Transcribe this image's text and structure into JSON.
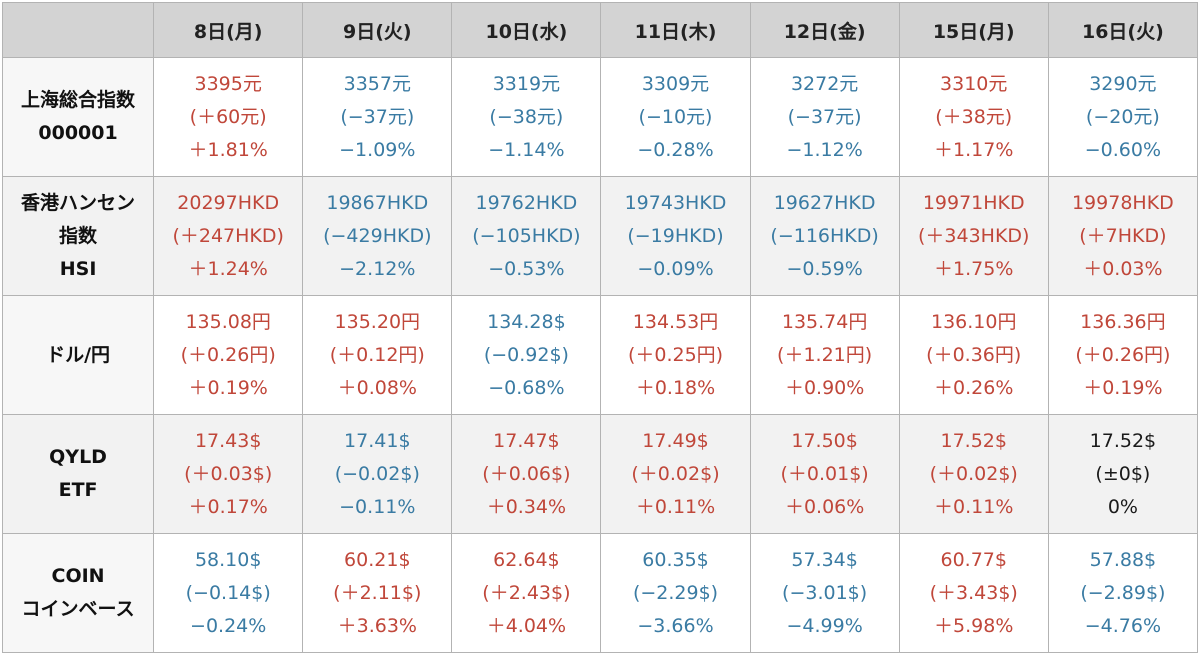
{
  "colors": {
    "up": "#c0473a",
    "down": "#3a7ba3",
    "flat": "#1a1a1a",
    "header_bg": "#d3d3d3",
    "border": "#b3b3b3"
  },
  "days": [
    "8日(月)",
    "9日(火)",
    "10日(水)",
    "11日(木)",
    "12日(金)",
    "15日(月)",
    "16日(火)"
  ],
  "rows": [
    {
      "key": "shanghai",
      "label": [
        "上海総合指数",
        "000001"
      ],
      "cells": [
        {
          "trend": "up",
          "lines": [
            "3395元",
            "(＋60元)",
            "＋1.81%"
          ]
        },
        {
          "trend": "down",
          "lines": [
            "3357元",
            "(−37元)",
            "−1.09%"
          ]
        },
        {
          "trend": "down",
          "lines": [
            "3319元",
            "(−38元)",
            "−1.14%"
          ]
        },
        {
          "trend": "down",
          "lines": [
            "3309元",
            "(−10元)",
            "−0.28%"
          ]
        },
        {
          "trend": "down",
          "lines": [
            "3272元",
            "(−37元)",
            "−1.12%"
          ]
        },
        {
          "trend": "up",
          "lines": [
            "3310元",
            "(＋38元)",
            "＋1.17%"
          ]
        },
        {
          "trend": "down",
          "lines": [
            "3290元",
            "(−20元)",
            "−0.60%"
          ]
        }
      ]
    },
    {
      "key": "hangseng",
      "label": [
        "香港ハンセン",
        "指数",
        "HSI"
      ],
      "cells": [
        {
          "trend": "up",
          "lines": [
            "20297HKD",
            "(＋247HKD)",
            "＋1.24%"
          ]
        },
        {
          "trend": "down",
          "lines": [
            "19867HKD",
            "(−429HKD)",
            "−2.12%"
          ]
        },
        {
          "trend": "down",
          "lines": [
            "19762HKD",
            "(−105HKD)",
            "−0.53%"
          ]
        },
        {
          "trend": "down",
          "lines": [
            "19743HKD",
            "(−19HKD)",
            "−0.09%"
          ]
        },
        {
          "trend": "down",
          "lines": [
            "19627HKD",
            "(−116HKD)",
            "−0.59%"
          ]
        },
        {
          "trend": "up",
          "lines": [
            "19971HKD",
            "(＋343HKD)",
            "＋1.75%"
          ]
        },
        {
          "trend": "up",
          "lines": [
            "19978HKD",
            "(＋7HKD)",
            "＋0.03%"
          ]
        }
      ]
    },
    {
      "key": "usdjpy",
      "label": [
        "ドル/円"
      ],
      "cells": [
        {
          "trend": "up",
          "lines": [
            "135.08円",
            "(＋0.26円)",
            "＋0.19%"
          ]
        },
        {
          "trend": "up",
          "lines": [
            "135.20円",
            "(＋0.12円)",
            "＋0.08%"
          ]
        },
        {
          "trend": "down",
          "lines": [
            "134.28$",
            "(−0.92$)",
            "−0.68%"
          ]
        },
        {
          "trend": "up",
          "lines": [
            "134.53円",
            "(＋0.25円)",
            "＋0.18%"
          ]
        },
        {
          "trend": "up",
          "lines": [
            "135.74円",
            "(＋1.21円)",
            "＋0.90%"
          ]
        },
        {
          "trend": "up",
          "lines": [
            "136.10円",
            "(＋0.36円)",
            "＋0.26%"
          ]
        },
        {
          "trend": "up",
          "lines": [
            "136.36円",
            "(＋0.26円)",
            "＋0.19%"
          ]
        }
      ]
    },
    {
      "key": "qyld",
      "label": [
        "QYLD",
        "ETF"
      ],
      "cells": [
        {
          "trend": "up",
          "lines": [
            "17.43$",
            "(＋0.03$)",
            "＋0.17%"
          ]
        },
        {
          "trend": "down",
          "lines": [
            "17.41$",
            "(−0.02$)",
            "−0.11%"
          ]
        },
        {
          "trend": "up",
          "lines": [
            "17.47$",
            "(＋0.06$)",
            "＋0.34%"
          ]
        },
        {
          "trend": "up",
          "lines": [
            "17.49$",
            "(＋0.02$)",
            "＋0.11%"
          ]
        },
        {
          "trend": "up",
          "lines": [
            "17.50$",
            "(＋0.01$)",
            "＋0.06%"
          ]
        },
        {
          "trend": "up",
          "lines": [
            "17.52$",
            "(＋0.02$)",
            "＋0.11%"
          ]
        },
        {
          "trend": "flat",
          "lines": [
            "17.52$",
            "(±0$)",
            "0%"
          ]
        }
      ]
    },
    {
      "key": "coin",
      "label": [
        "COIN",
        "コインベース"
      ],
      "cells": [
        {
          "trend": "down",
          "lines": [
            "58.10$",
            "(−0.14$)",
            "−0.24%"
          ]
        },
        {
          "trend": "up",
          "lines": [
            "60.21$",
            "(＋2.11$)",
            "＋3.63%"
          ]
        },
        {
          "trend": "up",
          "lines": [
            "62.64$",
            "(＋2.43$)",
            "＋4.04%"
          ]
        },
        {
          "trend": "down",
          "lines": [
            "60.35$",
            "(−2.29$)",
            "−3.66%"
          ]
        },
        {
          "trend": "down",
          "lines": [
            "57.34$",
            "(−3.01$)",
            "−4.99%"
          ]
        },
        {
          "trend": "up",
          "lines": [
            "60.77$",
            "(＋3.43$)",
            "＋5.98%"
          ]
        },
        {
          "trend": "down",
          "lines": [
            "57.88$",
            "(−2.89$)",
            "−4.76%"
          ]
        }
      ]
    }
  ]
}
